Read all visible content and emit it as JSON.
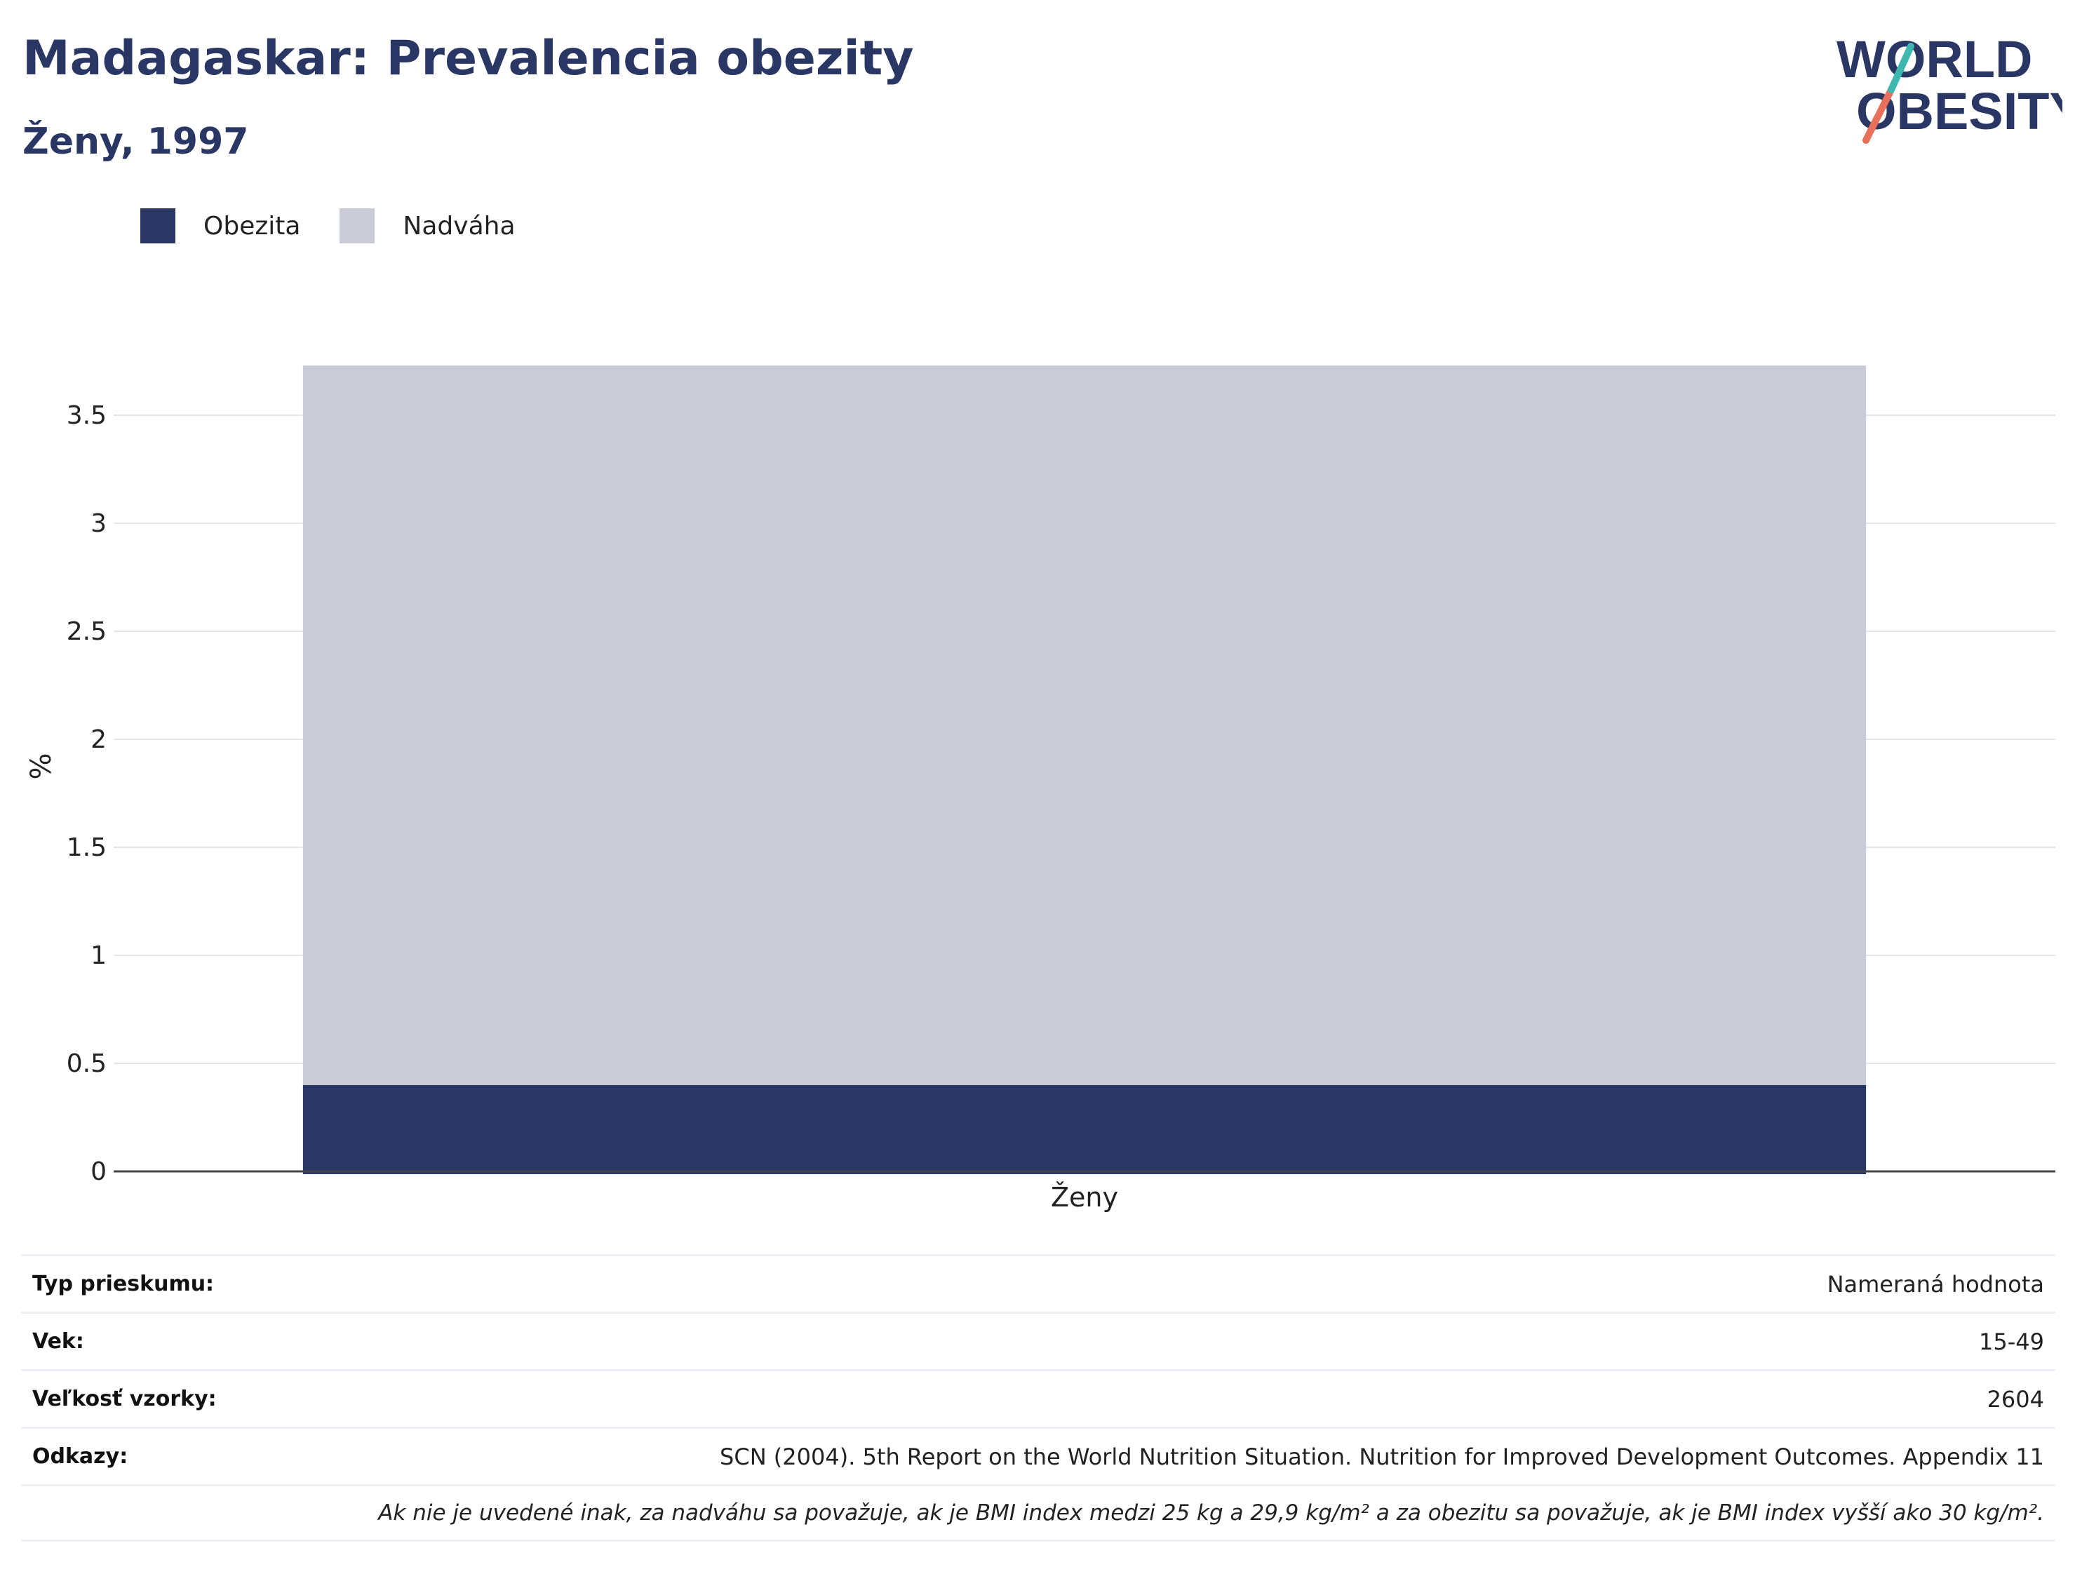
{
  "header": {
    "title": "Madagaskar: Prevalencia obezity",
    "subtitle": "Ženy, 1997"
  },
  "logo": {
    "line1": "WORLD",
    "line2": "OBESITY",
    "accent_teal": "#3fb8b0",
    "accent_coral": "#e8705a"
  },
  "colors": {
    "obesity": "#2a3764",
    "overweight": "#c9ccd7",
    "grid": "#e6e6e6",
    "axis": "#444444"
  },
  "chart_data": {
    "type": "bar",
    "stacked": true,
    "categories": [
      "Ženy"
    ],
    "series": [
      {
        "name": "Obezita",
        "values": [
          0.4
        ]
      },
      {
        "name": "Nadváha",
        "values": [
          3.33
        ]
      }
    ],
    "ylabel": "%",
    "xlabel": "",
    "ylim": [
      0,
      3.75
    ],
    "yticks": [
      0,
      0.5,
      1,
      1.5,
      2,
      2.5,
      3,
      3.5
    ],
    "ytick_labels": [
      "0",
      "0.5",
      "1",
      "1.5",
      "2",
      "2.5",
      "3",
      "3.5"
    ],
    "grid": true,
    "legend": "top-left"
  },
  "info": {
    "rows": [
      {
        "label": "Typ prieskumu:",
        "value": "Nameraná hodnota"
      },
      {
        "label": "Vek:",
        "value": "15-49"
      },
      {
        "label": "Veľkosť vzorky:",
        "value": "2604"
      },
      {
        "label": "Odkazy:",
        "value": "SCN (2004). 5th Report on the World Nutrition Situation. Nutrition for Improved Development Outcomes. Appendix 11"
      }
    ],
    "note": "Ak nie je uvedené inak, za nadváhu sa považuje, ak je BMI index medzi 25 kg a 29,9 kg/m² a za obezitu sa považuje, ak je BMI index vyšší ako 30 kg/m²."
  }
}
